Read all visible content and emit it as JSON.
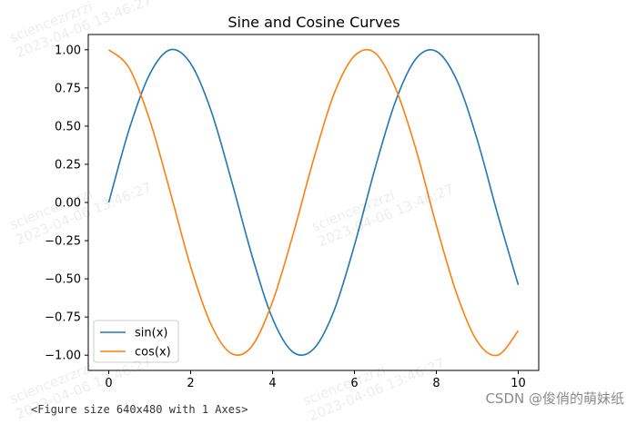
{
  "chart_data": {
    "type": "line",
    "title": "Sine and Cosine Curves",
    "xlabel": "",
    "ylabel": "",
    "xlim": [
      -0.5,
      10.5
    ],
    "ylim": [
      -1.1,
      1.1
    ],
    "xticks": [
      0,
      2,
      4,
      6,
      8,
      10
    ],
    "xtick_labels": [
      "0",
      "2",
      "4",
      "6",
      "8",
      "10"
    ],
    "yticks": [
      1.0,
      0.75,
      0.5,
      0.25,
      0.0,
      -0.25,
      -0.5,
      -0.75,
      -1.0
    ],
    "ytick_labels": [
      "1.00",
      "0.75",
      "0.50",
      "0.25",
      "0.00",
      "−0.25",
      "−0.50",
      "−0.75",
      "−1.00"
    ],
    "grid": false,
    "legend_position": "lower left",
    "x": [
      0.0,
      0.5,
      1.0,
      1.5,
      2.0,
      2.5,
      3.0,
      3.5,
      4.0,
      4.5,
      5.0,
      5.5,
      6.0,
      6.5,
      7.0,
      7.5,
      8.0,
      8.5,
      9.0,
      9.5,
      10.0
    ],
    "series": [
      {
        "name": "sin(x)",
        "color": "#1f77b4",
        "values": [
          0.0,
          0.48,
          0.84,
          1.0,
          0.91,
          0.6,
          0.14,
          -0.35,
          -0.76,
          -0.98,
          -0.96,
          -0.71,
          -0.28,
          0.22,
          0.66,
          0.94,
          0.99,
          0.8,
          0.41,
          -0.08,
          -0.54
        ]
      },
      {
        "name": "cos(x)",
        "color": "#ff7f0e",
        "values": [
          1.0,
          0.88,
          0.54,
          0.07,
          -0.42,
          -0.8,
          -0.99,
          -0.94,
          -0.65,
          -0.21,
          0.28,
          0.71,
          0.96,
          0.98,
          0.75,
          0.35,
          -0.15,
          -0.6,
          -0.91,
          -1.0,
          -0.84
        ]
      }
    ]
  },
  "figure_repr": "<Figure size 640x480 with 1 Axes>",
  "credit": "CSDN @俊俏的萌妹纸",
  "watermark": {
    "user": "sciencezrzrzi",
    "timestamp": "2023-04-06 13:46:27"
  }
}
